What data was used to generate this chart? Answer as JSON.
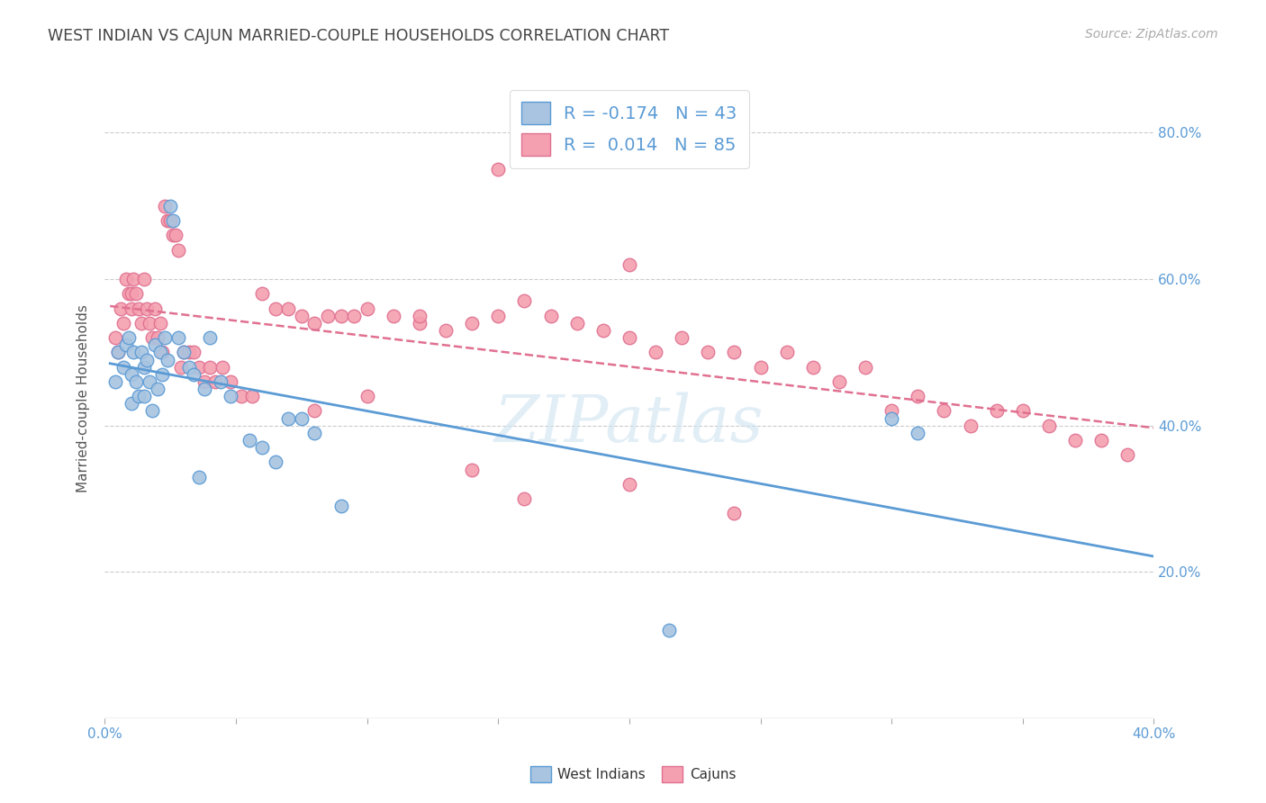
{
  "title": "WEST INDIAN VS CAJUN MARRIED-COUPLE HOUSEHOLDS CORRELATION CHART",
  "source": "Source: ZipAtlas.com",
  "ylabel": "Married-couple Households",
  "ytick_values": [
    0.0,
    0.2,
    0.4,
    0.6,
    0.8
  ],
  "xlim": [
    0.0,
    0.4
  ],
  "ylim": [
    0.0,
    0.875
  ],
  "west_indian_color": "#a8c4e0",
  "cajun_color": "#f4a0b0",
  "west_indian_line_color": "#5b9bd5",
  "cajun_line_color": "#e07090",
  "background_color": "#ffffff",
  "watermark": "ZIPatlas",
  "wi_R": -0.174,
  "wi_N": 43,
  "ca_R": 0.014,
  "ca_N": 85,
  "west_indians_x": [
    0.004,
    0.005,
    0.007,
    0.008,
    0.009,
    0.01,
    0.01,
    0.011,
    0.012,
    0.013,
    0.014,
    0.015,
    0.015,
    0.016,
    0.017,
    0.018,
    0.019,
    0.02,
    0.021,
    0.022,
    0.023,
    0.024,
    0.025,
    0.026,
    0.028,
    0.03,
    0.032,
    0.034,
    0.036,
    0.038,
    0.04,
    0.044,
    0.048,
    0.055,
    0.06,
    0.065,
    0.07,
    0.075,
    0.08,
    0.09,
    0.3,
    0.31,
    0.215
  ],
  "west_indians_y": [
    0.46,
    0.5,
    0.48,
    0.51,
    0.52,
    0.47,
    0.43,
    0.5,
    0.46,
    0.44,
    0.5,
    0.48,
    0.44,
    0.49,
    0.46,
    0.42,
    0.51,
    0.45,
    0.5,
    0.47,
    0.52,
    0.49,
    0.7,
    0.68,
    0.52,
    0.5,
    0.48,
    0.47,
    0.33,
    0.45,
    0.52,
    0.46,
    0.44,
    0.38,
    0.37,
    0.35,
    0.41,
    0.41,
    0.39,
    0.29,
    0.41,
    0.39,
    0.12
  ],
  "cajuns_x": [
    0.004,
    0.005,
    0.006,
    0.007,
    0.008,
    0.009,
    0.01,
    0.01,
    0.011,
    0.012,
    0.013,
    0.014,
    0.015,
    0.016,
    0.017,
    0.018,
    0.019,
    0.02,
    0.021,
    0.022,
    0.023,
    0.024,
    0.025,
    0.026,
    0.027,
    0.028,
    0.029,
    0.03,
    0.032,
    0.034,
    0.036,
    0.038,
    0.04,
    0.042,
    0.045,
    0.048,
    0.052,
    0.056,
    0.06,
    0.065,
    0.07,
    0.075,
    0.08,
    0.085,
    0.09,
    0.095,
    0.1,
    0.11,
    0.12,
    0.13,
    0.14,
    0.15,
    0.16,
    0.17,
    0.18,
    0.19,
    0.2,
    0.21,
    0.22,
    0.23,
    0.24,
    0.25,
    0.26,
    0.27,
    0.28,
    0.29,
    0.3,
    0.31,
    0.32,
    0.33,
    0.34,
    0.35,
    0.36,
    0.37,
    0.38,
    0.39,
    0.15,
    0.2,
    0.08,
    0.1,
    0.12,
    0.14,
    0.16,
    0.2,
    0.24
  ],
  "cajuns_y": [
    0.52,
    0.5,
    0.56,
    0.54,
    0.6,
    0.58,
    0.58,
    0.56,
    0.6,
    0.58,
    0.56,
    0.54,
    0.6,
    0.56,
    0.54,
    0.52,
    0.56,
    0.52,
    0.54,
    0.5,
    0.7,
    0.68,
    0.68,
    0.66,
    0.66,
    0.64,
    0.48,
    0.5,
    0.5,
    0.5,
    0.48,
    0.46,
    0.48,
    0.46,
    0.48,
    0.46,
    0.44,
    0.44,
    0.58,
    0.56,
    0.56,
    0.55,
    0.54,
    0.55,
    0.55,
    0.55,
    0.56,
    0.55,
    0.54,
    0.53,
    0.54,
    0.55,
    0.57,
    0.55,
    0.54,
    0.53,
    0.52,
    0.5,
    0.52,
    0.5,
    0.5,
    0.48,
    0.5,
    0.48,
    0.46,
    0.48,
    0.42,
    0.44,
    0.42,
    0.4,
    0.42,
    0.42,
    0.4,
    0.38,
    0.38,
    0.36,
    0.75,
    0.62,
    0.42,
    0.44,
    0.55,
    0.34,
    0.3,
    0.32,
    0.28
  ]
}
